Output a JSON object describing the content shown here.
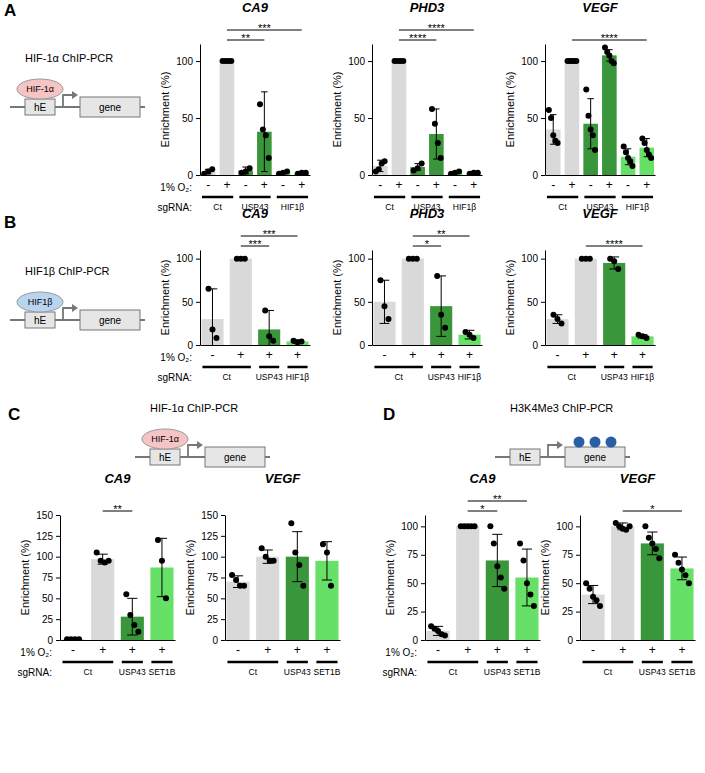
{
  "panels": [
    {
      "label": "A",
      "diagram": {
        "title": "HIF-1α ChIP-PCR",
        "factor": "HIF-1α",
        "element": "hE",
        "gene": "gene",
        "color": "#f6c4c4"
      }
    },
    {
      "label": "B",
      "diagram": {
        "title": "HIF1β ChIP-PCR",
        "factor": "HIF1β",
        "element": "hE",
        "gene": "gene",
        "color": "#b9d4ef"
      }
    },
    {
      "label": "C",
      "diagram": {
        "title": "HIF-1α ChIP-PCR",
        "factor": "HIF-1α",
        "element": "hE",
        "gene": "gene",
        "color": "#f6c4c4"
      }
    },
    {
      "label": "D",
      "diagram": {
        "title": "H3K4Me3 ChIP-PCR",
        "element": "hE",
        "gene": "gene",
        "color": "#2a5fa8"
      }
    }
  ],
  "chart_data": [
    {
      "type": "bar",
      "title": "CA9",
      "y_label": "Enrichment (%)",
      "x_row_labels": [
        "1% O₂:",
        "sgRNA:"
      ],
      "categories": [
        "-",
        "+",
        "-",
        "+",
        "-",
        "+"
      ],
      "sgRNA": [
        "Ct",
        "Ct",
        "USP43",
        "USP43",
        "HIF1β",
        "HIF1β"
      ],
      "values": [
        3,
        100,
        4,
        38,
        2,
        2
      ],
      "errors": [
        2,
        0,
        3,
        35,
        1,
        1
      ],
      "points": [
        [
          1,
          3,
          5
        ],
        [
          100,
          100,
          100,
          100
        ],
        [
          2,
          3,
          6
        ],
        [
          62,
          40,
          35,
          15
        ],
        [
          1,
          2,
          3
        ],
        [
          1,
          2,
          2
        ]
      ],
      "colors": [
        "#d9d9d9",
        "#d9d9d9",
        "#3a963a",
        "#3a963a",
        "#66e066",
        "#66e066"
      ],
      "ylim": [
        0,
        115
      ],
      "yticks": [
        0,
        50,
        100
      ],
      "significance": [
        {
          "bars": [
            1,
            3
          ],
          "label": "**"
        },
        {
          "bars": [
            1,
            5
          ],
          "label": "***"
        }
      ]
    },
    {
      "type": "bar",
      "title": "PHD3",
      "y_label": "Enrichment (%)",
      "categories": [
        "-",
        "+",
        "-",
        "+",
        "-",
        "+"
      ],
      "sgRNA": [
        "Ct",
        "Ct",
        "USP43",
        "USP43",
        "HIF1β",
        "HIF1β"
      ],
      "values": [
        8,
        100,
        7,
        36,
        2,
        2
      ],
      "errors": [
        5,
        0,
        3,
        22,
        1,
        1
      ],
      "points": [
        [
          3,
          5,
          10,
          12
        ],
        [
          100,
          100,
          100,
          100
        ],
        [
          4,
          6,
          10
        ],
        [
          58,
          45,
          28,
          15
        ],
        [
          1,
          2,
          3
        ],
        [
          1,
          2,
          2
        ]
      ],
      "colors": [
        "#d9d9d9",
        "#d9d9d9",
        "#3a963a",
        "#3a963a",
        "#66e066",
        "#66e066"
      ],
      "ylim": [
        0,
        115
      ],
      "yticks": [
        0,
        50,
        100
      ],
      "significance": [
        {
          "bars": [
            1,
            3
          ],
          "label": "****"
        },
        {
          "bars": [
            1,
            5
          ],
          "label": "****"
        }
      ]
    },
    {
      "type": "bar",
      "title": "VEGF",
      "y_label": "Enrichment (%)",
      "categories": [
        "-",
        "+",
        "-",
        "+",
        "-",
        "+"
      ],
      "sgRNA": [
        "Ct",
        "Ct",
        "USP43",
        "USP43",
        "HIF1β",
        "HIF1β"
      ],
      "values": [
        40,
        100,
        45,
        105,
        16,
        24
      ],
      "errors": [
        13,
        0,
        22,
        5,
        7,
        8
      ],
      "points": [
        [
          57,
          50,
          35,
          30,
          28
        ],
        [
          100,
          100,
          100,
          100,
          100
        ],
        [
          75,
          52,
          40,
          35,
          22
        ],
        [
          112,
          108,
          105,
          100,
          98
        ],
        [
          25,
          20,
          15,
          12,
          8
        ],
        [
          32,
          28,
          22,
          18,
          15
        ]
      ],
      "colors": [
        "#d9d9d9",
        "#d9d9d9",
        "#3a963a",
        "#3a963a",
        "#66e066",
        "#66e066"
      ],
      "ylim": [
        0,
        115
      ],
      "yticks": [
        0,
        50,
        100
      ],
      "significance": [
        {
          "bars": [
            1,
            5
          ],
          "label": "****"
        }
      ]
    },
    {
      "type": "bar",
      "title": "CA9",
      "y_label": "Enrichment (%)",
      "x_row_labels": [
        "1% O₂:",
        "sgRNA:"
      ],
      "categories": [
        "-",
        "+",
        "+",
        "+"
      ],
      "sgRNA": [
        "Ct",
        "Ct",
        "USP43",
        "HIF1β"
      ],
      "values": [
        30,
        100,
        18,
        4
      ],
      "errors": [
        35,
        0,
        22,
        2
      ],
      "points": [
        [
          65,
          18,
          8
        ],
        [
          100,
          100,
          100
        ],
        [
          40,
          10,
          5
        ],
        [
          5,
          3,
          4
        ]
      ],
      "colors": [
        "#d9d9d9",
        "#d9d9d9",
        "#3a963a",
        "#66e066"
      ],
      "ylim": [
        0,
        110
      ],
      "yticks": [
        0,
        50,
        100
      ],
      "significance": [
        {
          "bars": [
            1,
            2
          ],
          "label": "***"
        },
        {
          "bars": [
            1,
            3
          ],
          "label": "***"
        }
      ]
    },
    {
      "type": "bar",
      "title": "PHD3",
      "y_label": "Enrichment (%)",
      "categories": [
        "-",
        "+",
        "+",
        "+"
      ],
      "sgRNA": [
        "Ct",
        "Ct",
        "USP43",
        "HIF1β"
      ],
      "values": [
        50,
        100,
        45,
        12
      ],
      "errors": [
        25,
        0,
        35,
        5
      ],
      "points": [
        [
          75,
          45,
          30
        ],
        [
          100,
          100,
          100
        ],
        [
          80,
          35,
          20
        ],
        [
          15,
          12,
          8
        ]
      ],
      "colors": [
        "#d9d9d9",
        "#d9d9d9",
        "#3a963a",
        "#66e066"
      ],
      "ylim": [
        0,
        110
      ],
      "yticks": [
        0,
        50,
        100
      ],
      "significance": [
        {
          "bars": [
            1,
            2
          ],
          "label": "*"
        },
        {
          "bars": [
            1,
            3
          ],
          "label": "**"
        }
      ]
    },
    {
      "type": "bar",
      "title": "VEGF",
      "y_label": "Enrichment (%)",
      "categories": [
        "-",
        "+",
        "+",
        "+"
      ],
      "sgRNA": [
        "Ct",
        "Ct",
        "USP43",
        "HIF1β"
      ],
      "values": [
        30,
        100,
        95,
        10
      ],
      "errors": [
        5,
        0,
        7,
        2
      ],
      "points": [
        [
          35,
          30,
          25
        ],
        [
          100,
          100,
          100
        ],
        [
          100,
          97,
          88
        ],
        [
          12,
          10,
          8
        ]
      ],
      "colors": [
        "#d9d9d9",
        "#d9d9d9",
        "#3a963a",
        "#66e066"
      ],
      "ylim": [
        0,
        110
      ],
      "yticks": [
        0,
        50,
        100
      ],
      "significance": [
        {
          "bars": [
            1,
            3
          ],
          "label": "****"
        }
      ]
    },
    {
      "type": "bar",
      "title": "CA9",
      "y_label": "Enrichment (%)",
      "x_row_labels": [
        "1% O₂:",
        "sgRNA:"
      ],
      "categories": [
        "-",
        "+",
        "+",
        "+"
      ],
      "sgRNA": [
        "Ct",
        "Ct",
        "USP43",
        "SET1B"
      ],
      "values": [
        1,
        97,
        28,
        87
      ],
      "errors": [
        0.5,
        6,
        22,
        35
      ],
      "points": [
        [
          1,
          1,
          1,
          1
        ],
        [
          105,
          95,
          93,
          95
        ],
        [
          55,
          30,
          18,
          10
        ],
        [
          120,
          95,
          50
        ]
      ],
      "colors": [
        "#d9d9d9",
        "#d9d9d9",
        "#3a963a",
        "#66e066"
      ],
      "ylim": [
        0,
        150
      ],
      "yticks": [
        0,
        25,
        50,
        75,
        100,
        125,
        150
      ],
      "significance": [
        {
          "bars": [
            1,
            2
          ],
          "label": "**"
        }
      ]
    },
    {
      "type": "bar",
      "title": "VEGF",
      "y_label": "Enrichment (%)",
      "categories": [
        "-",
        "+",
        "+",
        "+"
      ],
      "sgRNA": [
        "Ct",
        "Ct",
        "USP43",
        "SET1B"
      ],
      "values": [
        70,
        100,
        100,
        95
      ],
      "errors": [
        7,
        8,
        30,
        23
      ],
      "points": [
        [
          78,
          72,
          65,
          65
        ],
        [
          110,
          100,
          95,
          95
        ],
        [
          140,
          105,
          90,
          65
        ],
        [
          115,
          105,
          65
        ]
      ],
      "colors": [
        "#d9d9d9",
        "#d9d9d9",
        "#3a963a",
        "#66e066"
      ],
      "ylim": [
        0,
        150
      ],
      "yticks": [
        0,
        25,
        50,
        75,
        100,
        125,
        150
      ],
      "significance": []
    },
    {
      "type": "bar",
      "title": "CA9",
      "y_label": "Enrichment (%)",
      "x_row_labels": [
        "1% O₂:",
        "sgRNA:"
      ],
      "categories": [
        "-",
        "+",
        "+",
        "+"
      ],
      "sgRNA": [
        "Ct",
        "Ct",
        "USP43",
        "SET1B"
      ],
      "values": [
        8,
        100,
        70,
        55
      ],
      "errors": [
        4,
        0,
        23,
        25
      ],
      "points": [
        [
          12,
          10,
          8,
          5,
          4
        ],
        [
          100,
          100,
          100,
          100,
          100
        ],
        [
          100,
          85,
          65,
          55,
          45
        ],
        [
          85,
          70,
          50,
          40,
          30
        ]
      ],
      "colors": [
        "#d9d9d9",
        "#d9d9d9",
        "#3a963a",
        "#66e066"
      ],
      "ylim": [
        0,
        110
      ],
      "yticks": [
        0,
        25,
        50,
        75,
        100
      ],
      "significance": [
        {
          "bars": [
            1,
            2
          ],
          "label": "*"
        },
        {
          "bars": [
            1,
            3
          ],
          "label": "**"
        }
      ]
    },
    {
      "type": "bar",
      "title": "VEGF",
      "y_label": "Enrichment (%)",
      "categories": [
        "-",
        "+",
        "+",
        "+"
      ],
      "sgRNA": [
        "Ct",
        "Ct",
        "USP43",
        "SET1B"
      ],
      "values": [
        40,
        100,
        85,
        63
      ],
      "errors": [
        8,
        3,
        10,
        10
      ],
      "points": [
        [
          50,
          45,
          38,
          35,
          30
        ],
        [
          103,
          100,
          98,
          97,
          100
        ],
        [
          100,
          90,
          85,
          80,
          72
        ],
        [
          75,
          68,
          62,
          57,
          50
        ]
      ],
      "colors": [
        "#d9d9d9",
        "#d9d9d9",
        "#3a963a",
        "#66e066"
      ],
      "ylim": [
        0,
        110
      ],
      "yticks": [
        0,
        25,
        50,
        75,
        100
      ],
      "significance": [
        {
          "bars": [
            1,
            3
          ],
          "label": "*"
        }
      ]
    }
  ]
}
